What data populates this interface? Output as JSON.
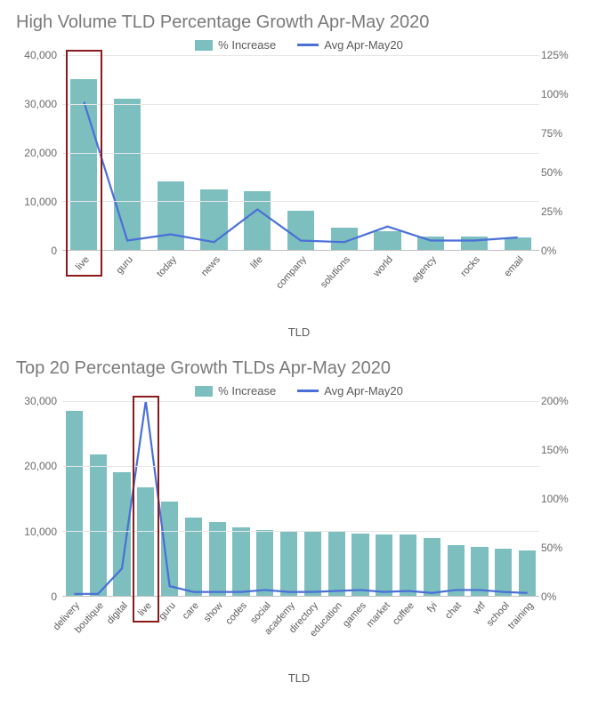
{
  "legend": {
    "series1_label": "% Increase",
    "series2_label": "Avg Apr-May20"
  },
  "colors": {
    "bar": "#7dbfbf",
    "line": "#4a6fd8",
    "grid": "#e6e6e6",
    "highlight_border": "#8b1a1a",
    "title": "#7a7a7a",
    "label": "#5a5a5a"
  },
  "chart1": {
    "title": "High Volume TLD Percentage Growth Apr-May 2020",
    "type": "bar+line",
    "x_axis_title": "TLD",
    "y_left": {
      "min": 0,
      "max": 40000,
      "ticks": [
        0,
        10000,
        20000,
        30000,
        40000
      ],
      "tick_labels": [
        "0",
        "10,000",
        "20,000",
        "30,000",
        "40,000"
      ]
    },
    "y_right": {
      "min": 0,
      "max": 125,
      "ticks": [
        0,
        25,
        50,
        75,
        100,
        125
      ],
      "tick_labels": [
        "0%",
        "25%",
        "50%",
        "75%",
        "100%",
        "125%"
      ]
    },
    "categories": [
      "live",
      "guru",
      "today",
      "news",
      "life",
      "company",
      "solutions",
      "world",
      "agency",
      "rocks",
      "email"
    ],
    "bar_values": [
      35000,
      31000,
      14000,
      12500,
      12000,
      8000,
      4500,
      3800,
      2800,
      2700,
      2600
    ],
    "line_values_pct": [
      95,
      6,
      10,
      5,
      26,
      6,
      5,
      15,
      6,
      6,
      8
    ],
    "bar_width_ratio": 0.62,
    "highlight_index": 0
  },
  "chart2": {
    "title": "Top 20 Percentage Growth TLDs Apr-May 2020",
    "type": "bar+line",
    "x_axis_title": "TLD",
    "y_left": {
      "min": 0,
      "max": 30000,
      "ticks": [
        0,
        10000,
        20000,
        30000
      ],
      "tick_labels": [
        "0",
        "10,000",
        "20,000",
        "30,000"
      ]
    },
    "y_right": {
      "min": 0,
      "max": 200,
      "ticks": [
        0,
        50,
        100,
        150,
        200
      ],
      "tick_labels": [
        "0%",
        "50%",
        "100%",
        "150%",
        "200%"
      ]
    },
    "categories": [
      "delivery",
      "boutique",
      "digital",
      "live",
      "guru",
      "care",
      "show",
      "codes",
      "social",
      "academy",
      "directory",
      "education",
      "games",
      "market",
      "coffee",
      "fyi",
      "chat",
      "wtf",
      "school",
      "training"
    ],
    "bar_values": [
      28500,
      21800,
      19100,
      16700,
      14500,
      12000,
      11400,
      10600,
      10200,
      10000,
      9900,
      9800,
      9600,
      9500,
      9400,
      8900,
      7800,
      7600,
      7200,
      7000
    ],
    "line_values_pct": [
      2,
      2,
      28,
      200,
      10,
      4,
      4,
      4,
      6,
      4,
      4,
      5,
      6,
      4,
      5,
      3,
      6,
      6,
      4,
      3
    ],
    "bar_width_ratio": 0.72,
    "highlight_index": 3
  }
}
